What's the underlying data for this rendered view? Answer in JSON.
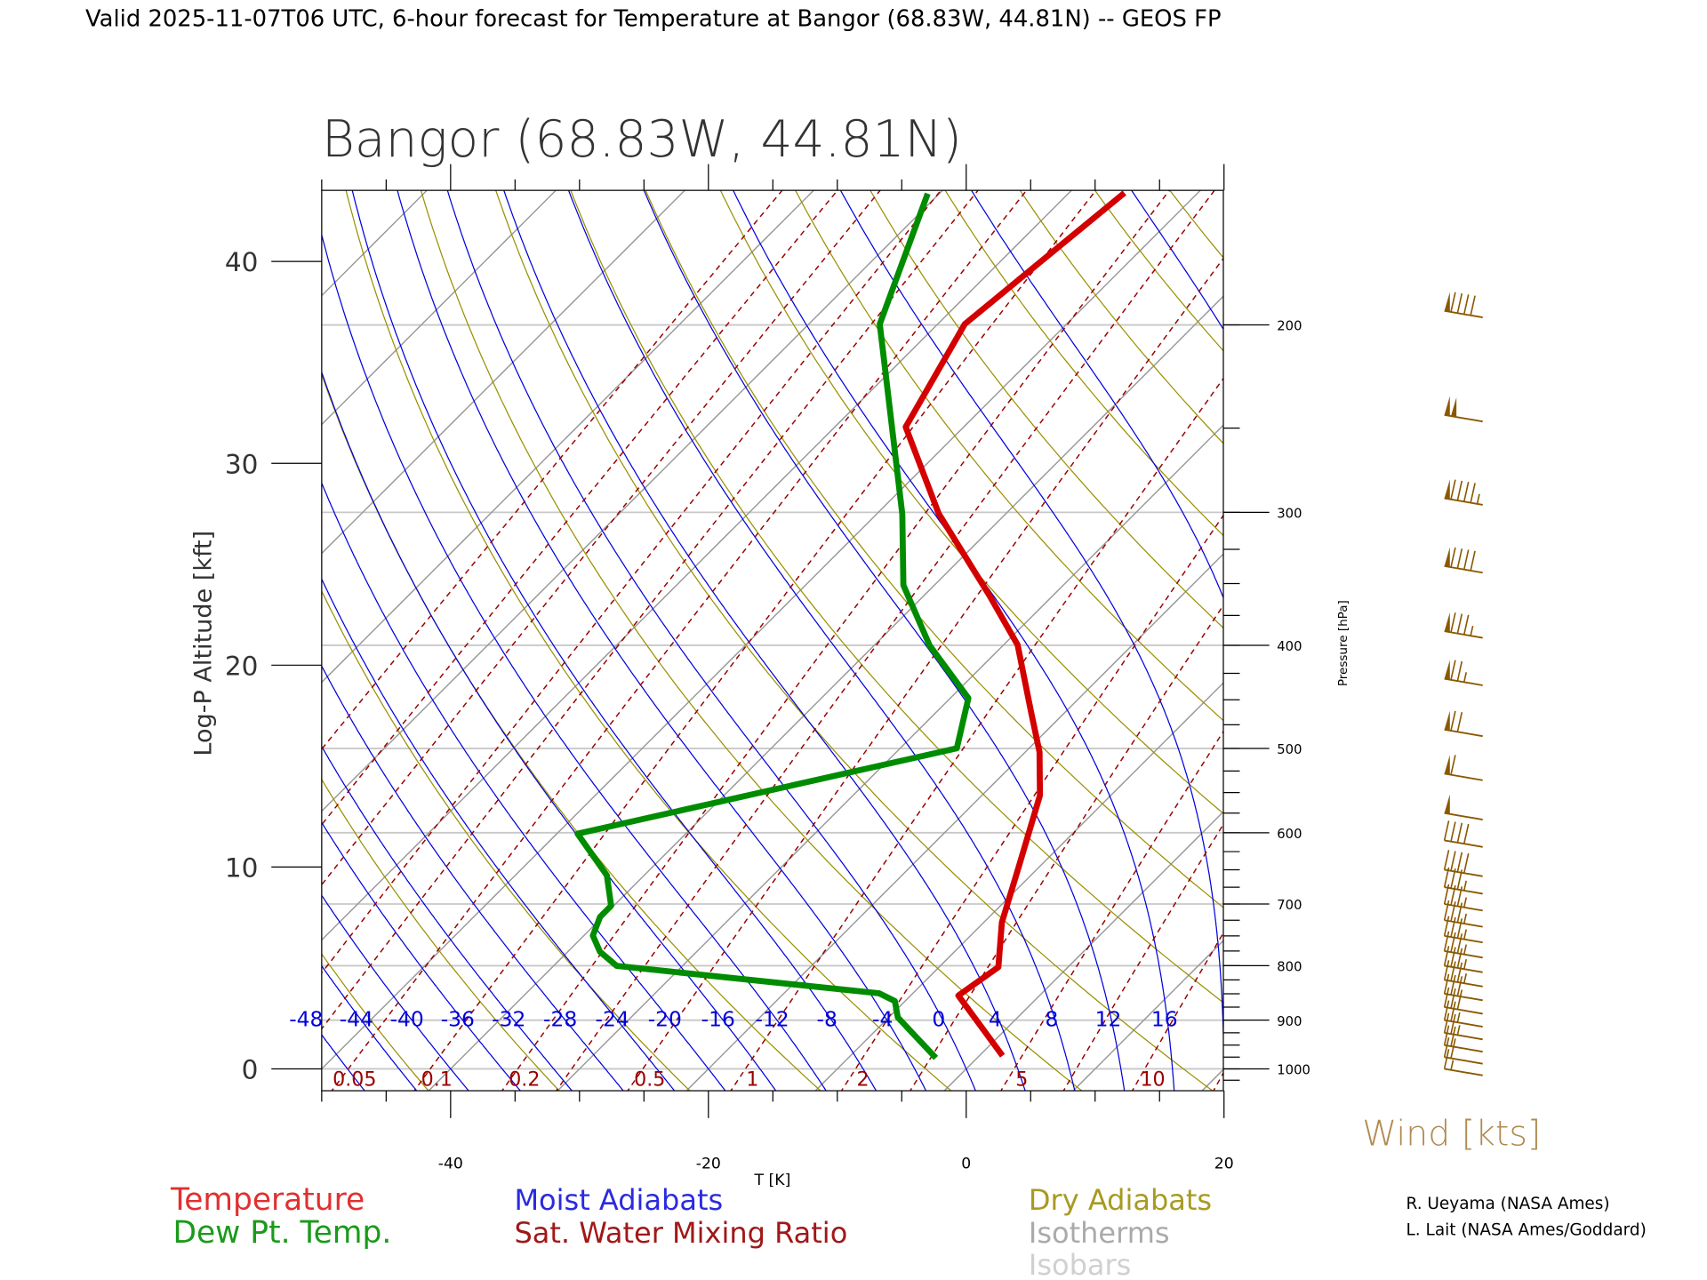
{
  "header": {
    "title": "Valid 2025-11-07T06 UTC, 6-hour forecast for Temperature at Bangor (68.83W, 44.81N) -- GEOS FP"
  },
  "chart_data": {
    "type": "line",
    "subtype": "skew-T log-P diagram",
    "title": "Bangor (68.83W, 44.81N)",
    "xlabel": "T [K]",
    "ylabel": "Log-P Altitude [kft]",
    "y2label": "Pressure [hPa]",
    "xlim": [
      -50,
      20
    ],
    "ylim": [
      -1.1,
      43.4
    ],
    "x_ticks": [
      "-40",
      "-20",
      "0",
      "20"
    ],
    "x_tick_values": [
      -40,
      -20,
      0,
      20
    ],
    "y_ticks": [
      "0",
      "10",
      "20",
      "30",
      "40"
    ],
    "y_tick_values": [
      0,
      10,
      20,
      30,
      40
    ],
    "pressure_labels": [
      "1000",
      "900",
      "800",
      "700",
      "600",
      "500",
      "400",
      "300",
      "200"
    ],
    "pressure_values": [
      1000,
      900,
      800,
      700,
      600,
      500,
      400,
      300,
      200
    ],
    "scale_height_kft": 22.9,
    "series": [
      {
        "name": "Temperature",
        "color": "#d40000",
        "alt_kft": [
          0.65,
          3.63,
          5.04,
          7.26,
          10.1,
          13.55,
          15.7,
          17.7,
          21.0,
          23.4,
          27.5,
          31.8,
          36.9,
          43.4
        ],
        "temp_c": [
          1.8,
          -6.3,
          -5.4,
          -8.6,
          -11.7,
          -15.5,
          -18.9,
          -22.7,
          -28.9,
          -34.8,
          -45.2,
          -54.5,
          -57.9,
          -55.7
        ]
      },
      {
        "name": "Dew Pt. Temp.",
        "color": "#008c00",
        "alt_kft": [
          0.54,
          2.55,
          3.36,
          3.74,
          5.1,
          5.8,
          6.6,
          7.53,
          8.08,
          9.59,
          11.65,
          15.88,
          18.37,
          20.98,
          23.96,
          27.48,
          36.9,
          43.36
        ],
        "temp_c": [
          -3.2,
          -9.3,
          -10.8,
          -12.6,
          -35.1,
          -37.5,
          -39.3,
          -40.2,
          -40.2,
          -42.9,
          -48.4,
          -25.6,
          -28.6,
          -35.7,
          -42.4,
          -48.0,
          -64.5,
          -70.9
        ]
      }
    ],
    "moist_adiabat_labels": [
      "-48",
      "-44",
      "-40",
      "-36",
      "-32",
      "-28",
      "-24",
      "-20",
      "-16",
      "-12",
      "-8",
      "-4",
      "0",
      "4",
      "8",
      "12",
      "16"
    ],
    "moist_adiabat_values": [
      -48,
      -44,
      -40,
      -36,
      -32,
      -28,
      -24,
      -20,
      -16,
      -12,
      -8,
      -4,
      0,
      4,
      8,
      12,
      16,
      20,
      24,
      28,
      32
    ],
    "mixing_ratio_labels": [
      "0.05",
      "0.1",
      "0.2",
      "0.5",
      "1",
      "2",
      "5",
      "10"
    ],
    "mixing_ratio_values": [
      0.003,
      0.006,
      0.01,
      0.02,
      0.03,
      0.05,
      0.1,
      0.2,
      0.3,
      0.5,
      1,
      2,
      3,
      5,
      7,
      10,
      15,
      20,
      30
    ],
    "isotherm_values": [
      -150,
      -140,
      -130,
      -120,
      -110,
      -100,
      -90,
      -80,
      -70,
      -60,
      -50,
      -40,
      -30,
      -20,
      -10,
      0,
      10,
      20,
      30,
      40
    ],
    "dry_adiabat_values_k": [
      210,
      220,
      230,
      240,
      250,
      260,
      270,
      280,
      290,
      300,
      310,
      320,
      330,
      340,
      350,
      360,
      370,
      380,
      390,
      400,
      410,
      420,
      430,
      440,
      450,
      460
    ],
    "wind_label": "Wind [kts]",
    "winds": [
      {
        "p": 194,
        "speed_kt": 90
      },
      {
        "p": 243,
        "speed_kt": 100
      },
      {
        "p": 291,
        "speed_kt": 95
      },
      {
        "p": 337,
        "speed_kt": 90
      },
      {
        "p": 388,
        "speed_kt": 85
      },
      {
        "p": 430,
        "speed_kt": 75
      },
      {
        "p": 480,
        "speed_kt": 70
      },
      {
        "p": 528,
        "speed_kt": 60
      },
      {
        "p": 575,
        "speed_kt": 50
      },
      {
        "p": 610,
        "speed_kt": 40
      },
      {
        "p": 650,
        "speed_kt": 40
      },
      {
        "p": 675,
        "speed_kt": 35
      },
      {
        "p": 700,
        "speed_kt": 35
      },
      {
        "p": 725,
        "speed_kt": 35
      },
      {
        "p": 750,
        "speed_kt": 35
      },
      {
        "p": 775,
        "speed_kt": 35
      },
      {
        "p": 800,
        "speed_kt": 35
      },
      {
        "p": 825,
        "speed_kt": 35
      },
      {
        "p": 850,
        "speed_kt": 30
      },
      {
        "p": 875,
        "speed_kt": 30
      },
      {
        "p": 900,
        "speed_kt": 25
      },
      {
        "p": 925,
        "speed_kt": 25
      },
      {
        "p": 950,
        "speed_kt": 20
      },
      {
        "p": 975,
        "speed_kt": 20
      },
      {
        "p": 1000,
        "speed_kt": 15
      }
    ],
    "colors": {
      "moist": "#0000dd",
      "mixing": "#990000",
      "dry": "#9a9000",
      "isotherm": "#9a9a9a",
      "isobar": "#c8c8c8",
      "wind": "#8a5800",
      "wind_label": "#b08a50"
    }
  },
  "legend": {
    "temperature": "Temperature",
    "dewpoint": "Dew Pt. Temp.",
    "moist": "Moist Adiabats",
    "mixing": "Sat. Water Mixing Ratio",
    "dry": "Dry Adiabats",
    "isotherms": "Isotherms",
    "isobars": "Isobars"
  },
  "credits": [
    "R. Ueyama (NASA Ames)",
    "L. Lait (NASA Ames/Goddard)"
  ]
}
